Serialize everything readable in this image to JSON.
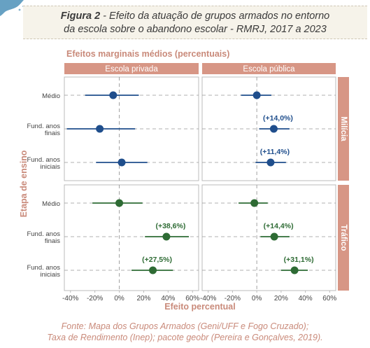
{
  "figure": {
    "label": "Figura 2",
    "separator": " - ",
    "title_line1": "Efeito da atuação de grupos armados no entorno",
    "title_line2": "da escola sobre o abandono escolar - RMRJ, 2017 a 2023"
  },
  "caption": {
    "line1": "Fonte: Mapa dos Grupos Armados (Geni/UFF e Fogo Cruzado);",
    "line2": "Taxa de Rendimento (Inep); pacote geobr (Pereira e Gonçalves, 2019)."
  },
  "colors": {
    "milicia": "#1f4e8c",
    "trafico": "#2e6b34",
    "strip": "#d79685",
    "strip_text": "#ffffff",
    "axis_text": "#c98a7a",
    "tick_text": "#444444",
    "panel_border": "#bbbbbb",
    "guide": "#999999"
  },
  "chart_data": {
    "type": "scatter",
    "subtitle": "Efeitos marginais médios (percentuais)",
    "xlabel": "Efeito percentual",
    "ylabel": "Etapa de ensino",
    "xlim": [
      -45,
      65
    ],
    "xticks": [
      -40,
      -20,
      0,
      20,
      40,
      60
    ],
    "xtick_labels": [
      "-40%",
      "-20%",
      "0%",
      "20%",
      "40%",
      "60%"
    ],
    "columns": [
      "Escola privada",
      "Escola pública"
    ],
    "rows": [
      "Milícia",
      "Tráfico"
    ],
    "categories": [
      [
        "Médio"
      ],
      [
        "Fund. anos",
        "finais"
      ],
      [
        "Fund. anos",
        "iniciais"
      ]
    ],
    "panels": [
      {
        "row": "Milícia",
        "column": "Escola privada",
        "points": [
          {
            "category": "Médio",
            "estimate": -5,
            "low": -28,
            "high": 16,
            "label": ""
          },
          {
            "category": "Fund. anos finais",
            "estimate": -16,
            "low": -43,
            "high": 13,
            "label": ""
          },
          {
            "category": "Fund. anos iniciais",
            "estimate": 2,
            "low": -19,
            "high": 23,
            "label": ""
          }
        ]
      },
      {
        "row": "Milícia",
        "column": "Escola pública",
        "points": [
          {
            "category": "Médio",
            "estimate": 0,
            "low": -13,
            "high": 12,
            "label": ""
          },
          {
            "category": "Fund. anos finais",
            "estimate": 14,
            "low": 2,
            "high": 27,
            "label": "(+14,0%)"
          },
          {
            "category": "Fund. anos iniciais",
            "estimate": 11.4,
            "low": -1,
            "high": 24,
            "label": "(+11,4%)"
          }
        ]
      },
      {
        "row": "Tráfico",
        "column": "Escola privada",
        "points": [
          {
            "category": "Médio",
            "estimate": 0,
            "low": -22,
            "high": 19,
            "label": ""
          },
          {
            "category": "Fund. anos finais",
            "estimate": 38.6,
            "low": 21,
            "high": 57,
            "label": "(+38,6%)"
          },
          {
            "category": "Fund. anos iniciais",
            "estimate": 27.5,
            "low": 10,
            "high": 44,
            "label": "(+27,5%)"
          }
        ]
      },
      {
        "row": "Tráfico",
        "column": "Escola pública",
        "points": [
          {
            "category": "Médio",
            "estimate": -2,
            "low": -15,
            "high": 9,
            "label": ""
          },
          {
            "category": "Fund. anos finais",
            "estimate": 14.4,
            "low": 3,
            "high": 27,
            "label": "(+14,4%)"
          },
          {
            "category": "Fund. anos iniciais",
            "estimate": 31.1,
            "low": 20,
            "high": 42,
            "label": "(+31,1%)"
          }
        ]
      }
    ]
  }
}
